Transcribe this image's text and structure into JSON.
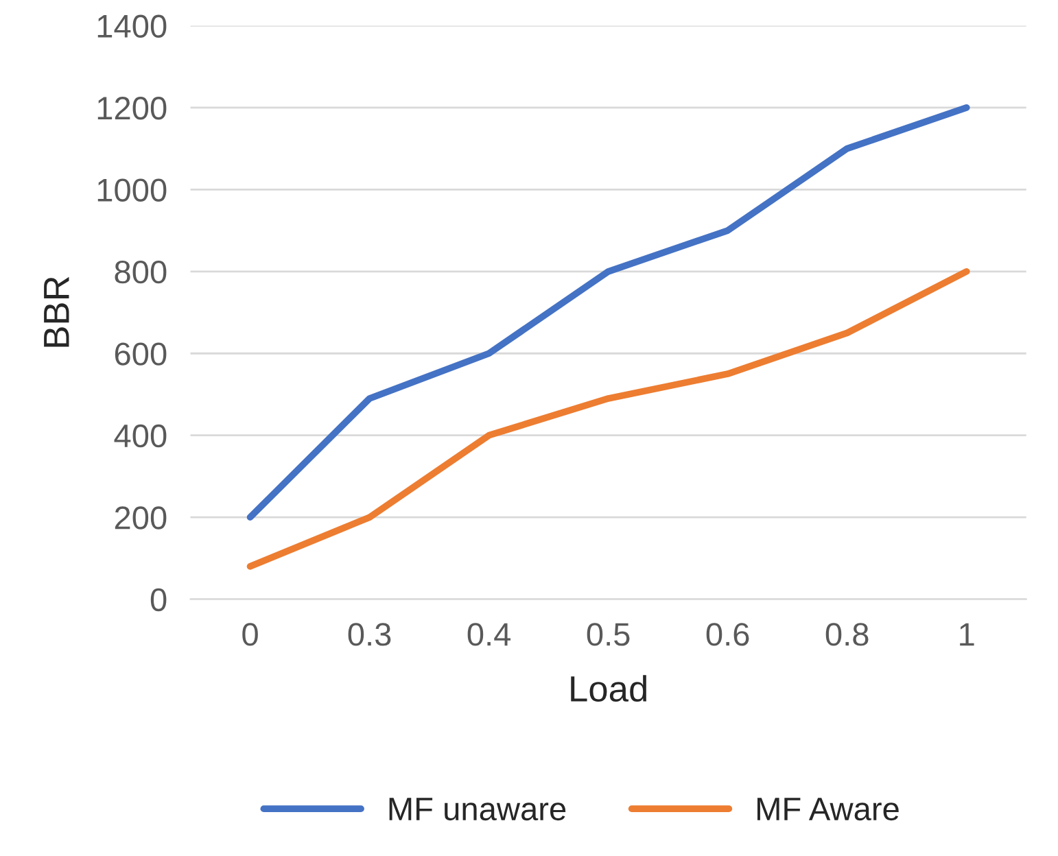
{
  "chart_data": {
    "type": "line",
    "xlabel": "Load",
    "ylabel": "BBR",
    "categories": [
      "0",
      "0.3",
      "0.4",
      "0.5",
      "0.6",
      "0.8",
      "1"
    ],
    "series": [
      {
        "name": "MF unaware",
        "color": "#4472c4",
        "values": [
          200,
          490,
          600,
          800,
          900,
          1100,
          1200
        ]
      },
      {
        "name": "MF Aware",
        "color": "#ed7d31",
        "values": [
          80,
          200,
          400,
          490,
          550,
          650,
          800
        ]
      }
    ],
    "ylim": [
      0,
      1400
    ],
    "yticks": [
      0,
      200,
      400,
      600,
      800,
      1000,
      1200,
      1400
    ],
    "grid": "y",
    "legend": "bottom",
    "marker": "none",
    "line_style": "solid"
  }
}
